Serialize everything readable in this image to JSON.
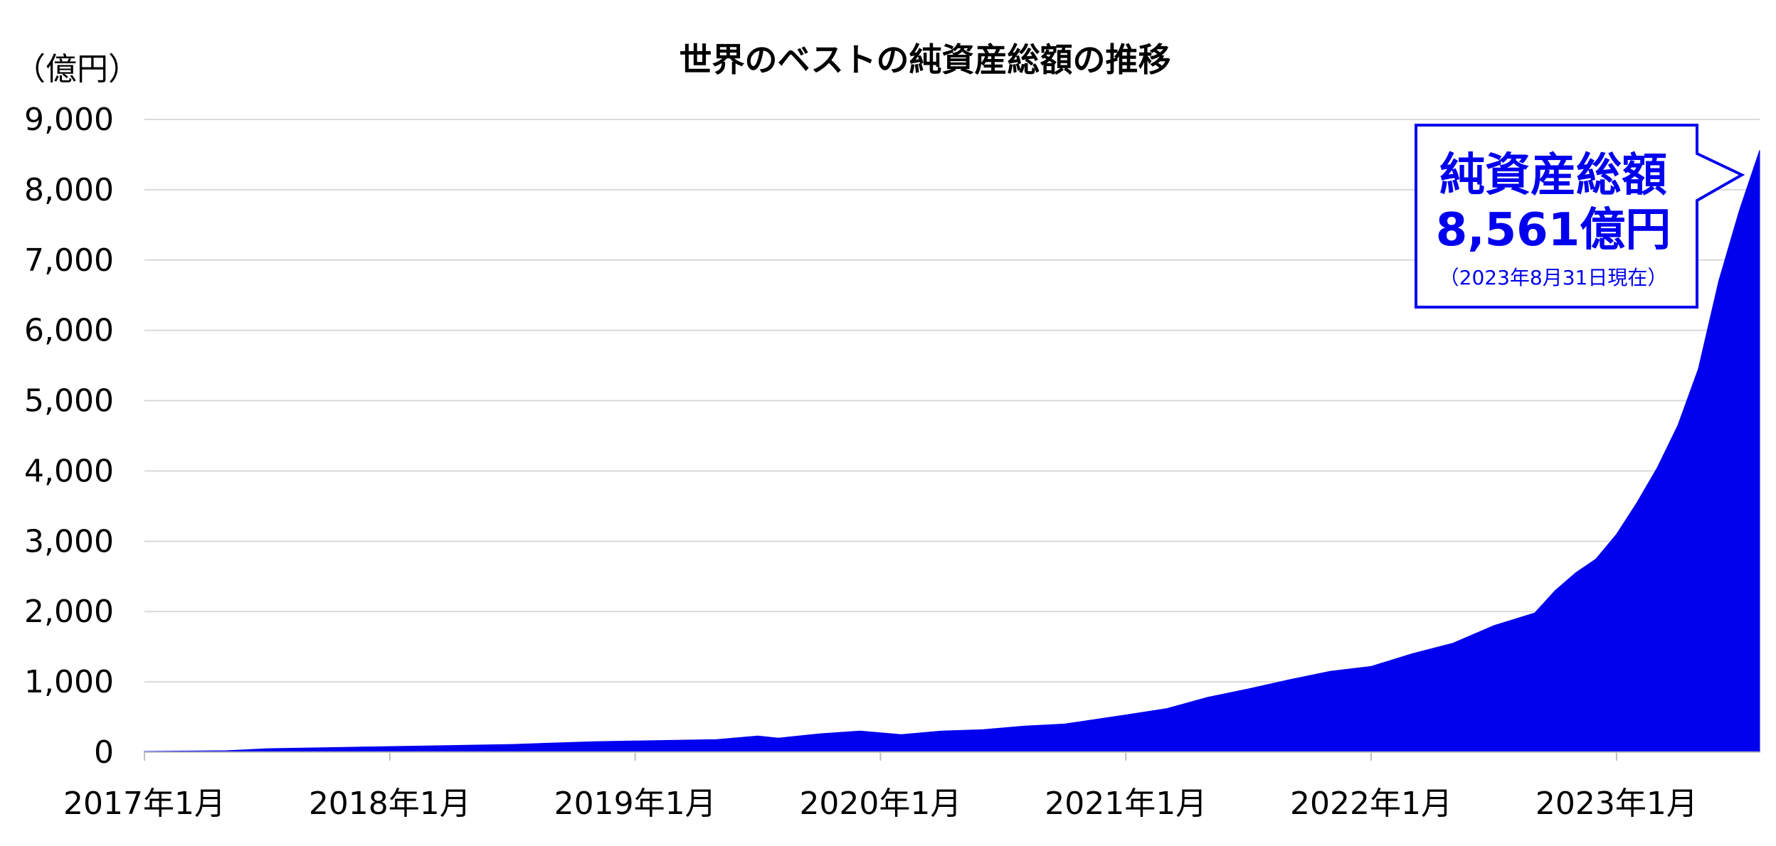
{
  "chart_data": {
    "type": "area",
    "title": "世界のベストの純資産総額の推移",
    "ylabel": "（億円）",
    "xlabel": "",
    "ylim": [
      0,
      9000
    ],
    "yticks": [
      "0",
      "1,000",
      "2,000",
      "3,000",
      "4,000",
      "5,000",
      "6,000",
      "7,000",
      "8,000",
      "9,000"
    ],
    "ytick_values": [
      0,
      1000,
      2000,
      3000,
      4000,
      5000,
      6000,
      7000,
      8000,
      9000
    ],
    "xticks": [
      "2017年1月",
      "2018年1月",
      "2019年1月",
      "2020年1月",
      "2021年1月",
      "2022年1月",
      "2023年1月"
    ],
    "xtick_dates": [
      "2017-01",
      "2018-01",
      "2019-01",
      "2020-01",
      "2021-01",
      "2022-01",
      "2023-01"
    ],
    "x_range": [
      "2017-01",
      "2023-08"
    ],
    "grid": true,
    "color": "#0000ee",
    "series": [
      {
        "x": [
          "2017-01",
          "2017-03",
          "2017-05",
          "2017-07",
          "2017-09",
          "2017-11",
          "2018-01",
          "2018-03",
          "2018-05",
          "2018-07",
          "2018-09",
          "2018-11",
          "2019-01",
          "2019-03",
          "2019-05",
          "2019-07",
          "2019-08",
          "2019-10",
          "2019-12",
          "2020-02",
          "2020-04",
          "2020-06",
          "2020-08",
          "2020-10",
          "2021-01",
          "2021-03",
          "2021-05",
          "2021-07",
          "2021-09",
          "2021-11",
          "2022-01",
          "2022-03",
          "2022-05",
          "2022-07",
          "2022-09",
          "2022-10",
          "2022-11",
          "2022-12",
          "2023-01",
          "2023-02",
          "2023-03",
          "2023-04",
          "2023-05",
          "2023-06",
          "2023-07",
          "2023-08"
        ],
        "values": [
          10,
          15,
          20,
          50,
          60,
          70,
          80,
          90,
          100,
          110,
          130,
          150,
          160,
          170,
          180,
          230,
          200,
          260,
          300,
          250,
          300,
          320,
          370,
          400,
          530,
          620,
          780,
          900,
          1030,
          1150,
          1220,
          1400,
          1550,
          1800,
          1980,
          2300,
          2550,
          2750,
          3100,
          3550,
          4050,
          4650,
          5450,
          6700,
          7700,
          8561
        ]
      }
    ],
    "annotation": {
      "line1": "純資産総額",
      "line2": "8,561億円",
      "line3": "（2023年8月31日現在）"
    }
  }
}
